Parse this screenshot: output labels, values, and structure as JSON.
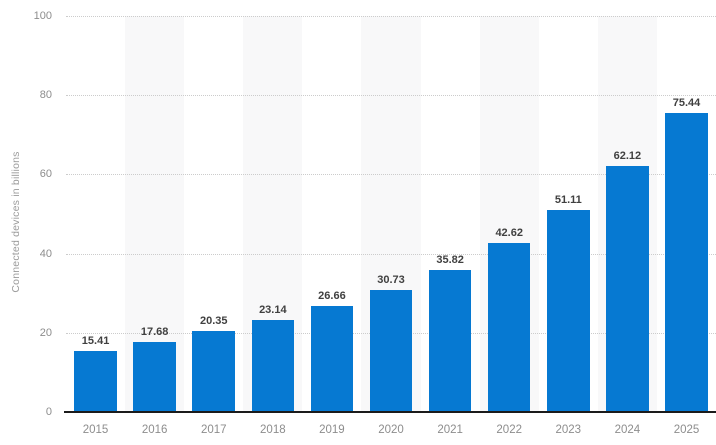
{
  "chart_data": {
    "type": "bar",
    "title": "",
    "xlabel": "",
    "ylabel": "Connected devices in billions",
    "categories": [
      "2015",
      "2016",
      "2017",
      "2018",
      "2019",
      "2020",
      "2021",
      "2022",
      "2023",
      "2024",
      "2025"
    ],
    "values": [
      15.41,
      17.68,
      20.35,
      23.14,
      26.66,
      30.73,
      35.82,
      42.62,
      51.11,
      62.12,
      75.44
    ],
    "value_labels": [
      "15.41",
      "17.68",
      "20.35",
      "23.14",
      "26.66",
      "30.73",
      "35.82",
      "42.62",
      "51.11",
      "62.12",
      "75.44"
    ],
    "ylim": [
      0,
      100
    ],
    "yticks": [
      0,
      20,
      40,
      60,
      80,
      100
    ],
    "grid": "horizontal-dotted",
    "legend_position": "none",
    "striped_columns": [
      "2016",
      "2018",
      "2020",
      "2022",
      "2024"
    ],
    "colors": {
      "bar": "#0679d2",
      "value_label": "#404040",
      "axis_text": "#8d8d8d",
      "axis_title": "#9b9b9b",
      "gridline": "#cccccc",
      "baseline": "#1b1b1b",
      "column_stripe": "#f8f8f9",
      "background": "#ffffff"
    }
  }
}
